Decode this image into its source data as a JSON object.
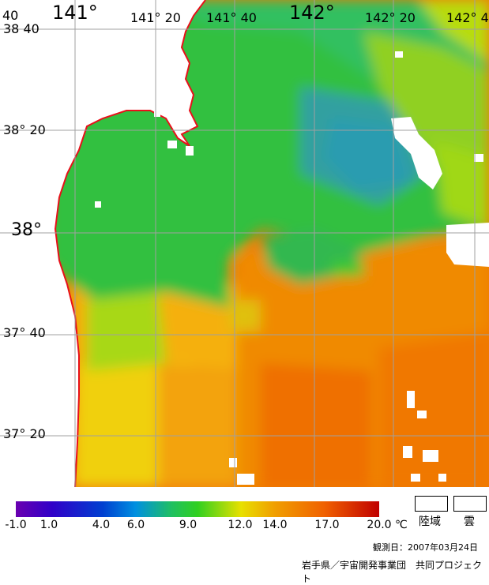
{
  "map": {
    "lon_labels": [
      "141°",
      "141° 20",
      "141° 40",
      "142°",
      "142° 20",
      "142° 4"
    ],
    "lat_labels": [
      "40",
      "38 40",
      "38° 20",
      "38°",
      "37° 40",
      "37° 20"
    ],
    "colors": {
      "land": "#ffffff",
      "coast": "#e8101a",
      "grid": "#a0a0a0"
    }
  },
  "legend": {
    "ticks": [
      "-1.0",
      "1.0",
      "4.0",
      "6.0",
      "9.0",
      "12.0",
      "14.0",
      "17.0",
      "20.0"
    ],
    "unit": "℃",
    "land_label": "陸域",
    "cloud_label": "雲"
  },
  "footer": {
    "observation": "観測日：2007年03月24日",
    "credit": "岩手県／宇宙開発事業団　共同プロジェクト"
  }
}
